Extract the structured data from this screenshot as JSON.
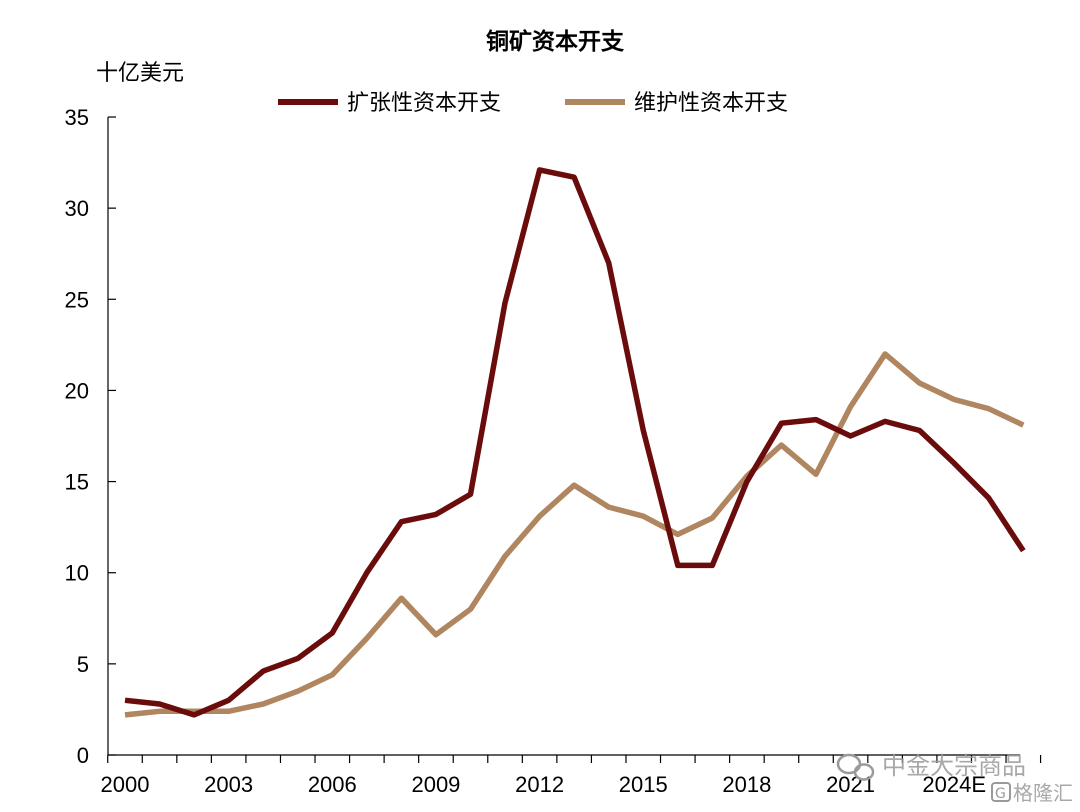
{
  "chart_data": {
    "type": "line",
    "title": "铜矿资本开支",
    "ylabel": "十亿美元",
    "xlabel": "",
    "ylim": [
      0,
      35
    ],
    "yticks": [
      0,
      5,
      10,
      15,
      20,
      25,
      30,
      35
    ],
    "x": [
      "2000",
      "2001",
      "2002",
      "2003",
      "2004",
      "2005",
      "2006",
      "2007",
      "2008",
      "2009",
      "2010",
      "2011",
      "2012",
      "2013",
      "2014",
      "2015",
      "2016",
      "2017",
      "2018",
      "2019",
      "2020",
      "2021",
      "2022",
      "2023",
      "2024E",
      "2025E",
      "2026E"
    ],
    "xtick_labels": [
      "2000",
      "2003",
      "2006",
      "2009",
      "2012",
      "2015",
      "2018",
      "2021",
      "2024E"
    ],
    "legend_position": "top",
    "grid": false,
    "series": [
      {
        "name": "扩张性资本开支",
        "color": "#6b0c0c",
        "values": [
          3.0,
          2.8,
          2.2,
          3.0,
          4.6,
          5.3,
          6.7,
          10.0,
          12.8,
          13.2,
          14.3,
          24.8,
          32.1,
          31.7,
          27.0,
          17.8,
          10.4,
          10.4,
          15.0,
          18.2,
          18.4,
          17.5,
          18.3,
          17.8,
          16.0,
          14.1,
          11.2
        ]
      },
      {
        "name": "维护性资本开支",
        "color": "#b08660",
        "values": [
          2.2,
          2.4,
          2.4,
          2.4,
          2.8,
          3.5,
          4.4,
          6.4,
          8.6,
          6.6,
          8.0,
          10.9,
          13.1,
          14.8,
          13.6,
          13.1,
          12.1,
          13.0,
          15.3,
          17.0,
          15.4,
          19.1,
          22.0,
          20.4,
          19.5,
          19.0,
          18.1
        ]
      }
    ]
  },
  "watermark": {
    "line1": "中金大宗商品",
    "line2": "格隆汇"
  }
}
